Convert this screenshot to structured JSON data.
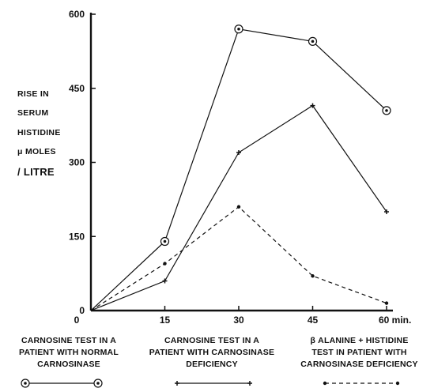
{
  "chart_data": {
    "type": "line",
    "title": "",
    "xlabel": "",
    "ylabel_lines": [
      "RISE IN",
      "SERUM",
      "HISTIDINE",
      "μ MOLES",
      "/ LITRE"
    ],
    "x_ticks": [
      "0",
      "15",
      "30",
      "45",
      "60 min."
    ],
    "y_ticks": [
      "0",
      "150",
      "300",
      "450",
      "600"
    ],
    "xlim": [
      0,
      60
    ],
    "ylim": [
      0,
      600
    ],
    "grid": false,
    "legend_placement": "bottom",
    "series": [
      {
        "name": "CARNOSINE TEST IN A PATIENT WITH NORMAL CARNOSINASE",
        "marker": "circled-dot",
        "line": "solid",
        "x": [
          0,
          15,
          30,
          45,
          60
        ],
        "y": [
          0,
          140,
          570,
          545,
          405
        ]
      },
      {
        "name": "CARNOSINE TEST IN A PATIENT WITH CARNOSINASE DEFICIENCY",
        "marker": "plus",
        "line": "solid",
        "x": [
          0,
          15,
          30,
          45,
          60
        ],
        "y": [
          0,
          60,
          320,
          415,
          200
        ]
      },
      {
        "name": "β ALANINE + HISTIDINE TEST IN PATIENT WITH CARNOSINASE DEFICIENCY",
        "marker": "dot",
        "line": "dashed",
        "x": [
          0,
          15,
          30,
          45,
          60
        ],
        "y": [
          0,
          95,
          210,
          70,
          15
        ]
      }
    ]
  },
  "legend": {
    "normal": [
      "CARNOSINE TEST IN A",
      "PATIENT WITH NORMAL",
      "CARNOSINASE"
    ],
    "deficiency": [
      "CARNOSINE TEST IN A",
      "PATIENT WITH CARNOSINASE",
      "DEFICIENCY"
    ],
    "beta": [
      "β ALANINE + HISTIDINE",
      "TEST IN PATIENT WITH",
      "CARNOSINASE  DEFICIENCY"
    ]
  }
}
